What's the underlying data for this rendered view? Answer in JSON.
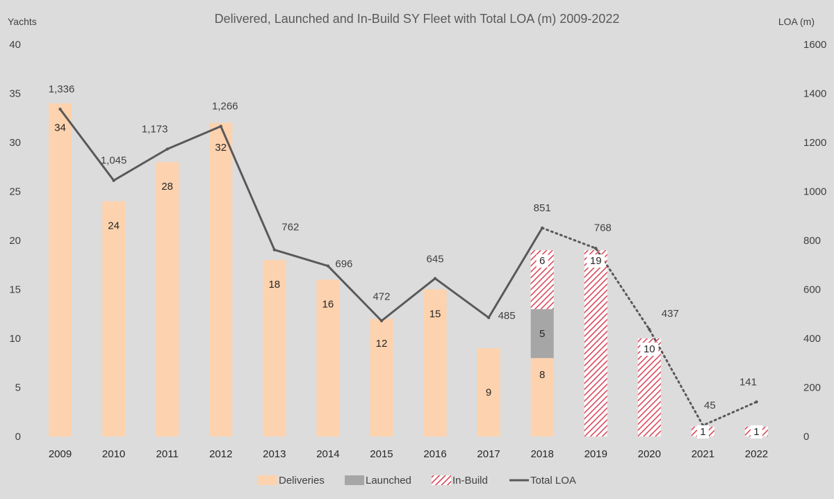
{
  "chart_data": {
    "type": "bar",
    "title": "Delivered, Launched and In-Build SY Fleet with Total LOA (m) 2009-2022",
    "y_left_label": "Yachts",
    "y_right_label": "LOA (m)",
    "ylim_left": [
      0,
      40
    ],
    "ylim_right": [
      0,
      1600
    ],
    "y_left_ticks": [
      0,
      5,
      10,
      15,
      20,
      25,
      30,
      35,
      40
    ],
    "y_right_ticks": [
      0,
      200,
      400,
      600,
      800,
      1000,
      1200,
      1400,
      1600
    ],
    "categories": [
      "2009",
      "2010",
      "2011",
      "2012",
      "2013",
      "2014",
      "2015",
      "2016",
      "2017",
      "2018",
      "2019",
      "2020",
      "2021",
      "2022"
    ],
    "series": [
      {
        "name": "Deliveries",
        "kind": "bar",
        "color": "#fdd2ae",
        "values": [
          34,
          24,
          28,
          32,
          18,
          16,
          12,
          15,
          9,
          8,
          null,
          null,
          null,
          null
        ]
      },
      {
        "name": "Launched",
        "kind": "bar",
        "color": "#a6a6a6",
        "values": [
          null,
          null,
          null,
          null,
          null,
          null,
          null,
          null,
          null,
          5,
          null,
          null,
          null,
          null
        ]
      },
      {
        "name": "In-Build",
        "kind": "bar-hatched",
        "color": "#d9475a",
        "values": [
          null,
          null,
          null,
          null,
          null,
          null,
          null,
          null,
          null,
          6,
          19,
          10,
          1,
          1
        ]
      },
      {
        "name": "Total LOA",
        "kind": "line",
        "axis": "right",
        "color": "#595959",
        "values": [
          1336,
          1045,
          1173,
          1266,
          762,
          696,
          472,
          645,
          485,
          851,
          768,
          437,
          45,
          141
        ],
        "labels": [
          "1,336",
          "1,045",
          "1,173",
          "1,266",
          "762",
          "696",
          "472",
          "645",
          "485",
          "851",
          "768",
          "437",
          "45",
          "141"
        ],
        "solid_through": "2018"
      }
    ],
    "grid": false,
    "legend_position": "bottom"
  }
}
